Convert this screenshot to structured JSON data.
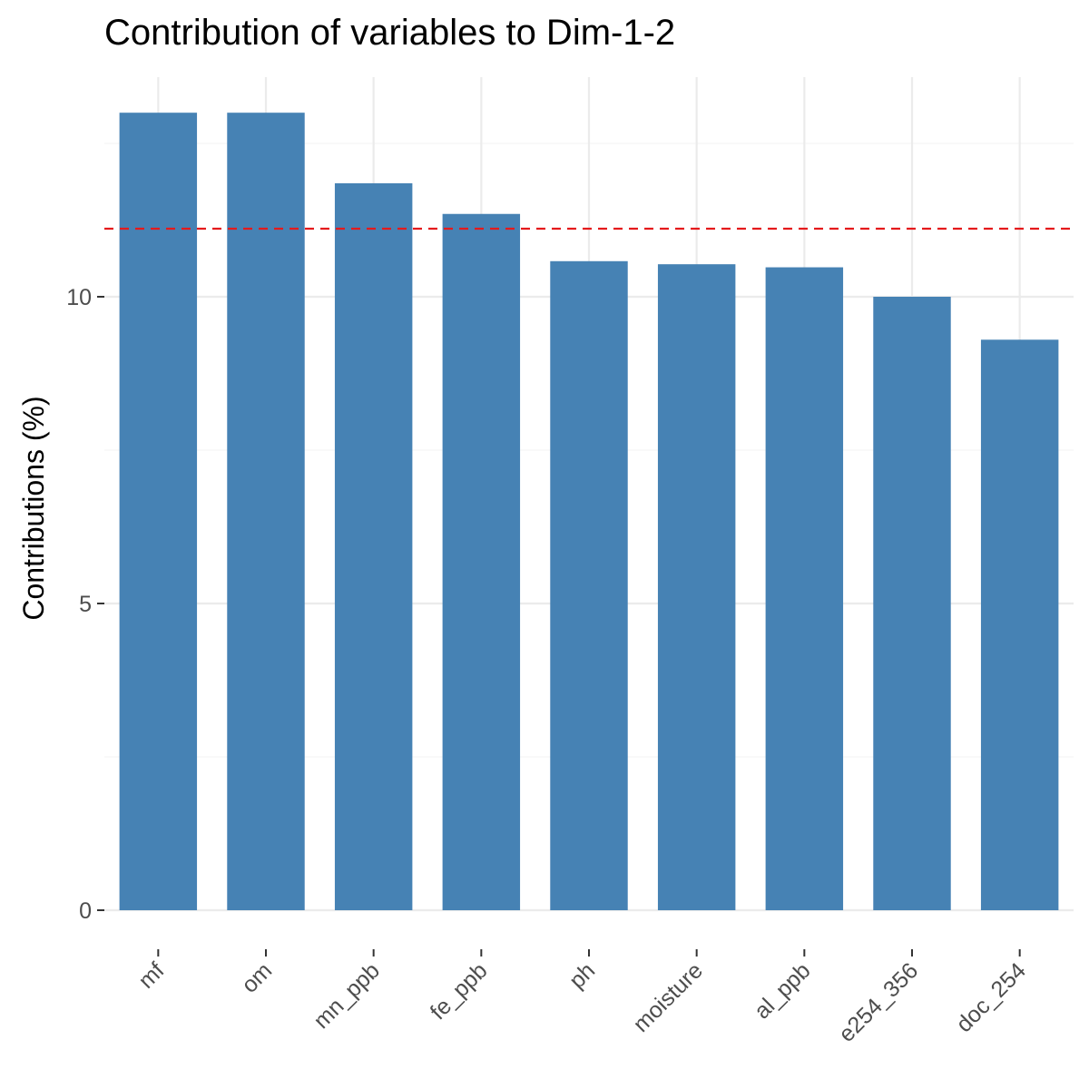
{
  "chart_data": {
    "type": "bar",
    "title": "Contribution of variables to Dim-1-2",
    "xlabel": "",
    "ylabel": "Contributions (%)",
    "categories": [
      "mf",
      "om",
      "mn_ppb",
      "fe_ppb",
      "ph",
      "moisture",
      "al_ppb",
      "e254_356",
      "doc_254"
    ],
    "values": [
      13.0,
      13.0,
      11.85,
      11.35,
      10.58,
      10.53,
      10.48,
      10.0,
      9.3
    ],
    "yticks": [
      0,
      5,
      10
    ],
    "ylim": [
      0,
      13.6
    ],
    "reference_line": 11.11,
    "grid": true,
    "colors": {
      "bar": "#4682B4",
      "reference_line": "#E41A1C",
      "grid_major": "#ebebeb",
      "grid_minor": "#f5f5f5",
      "tick_text": "#4d4d4d",
      "tick_mark": "#333333"
    }
  }
}
